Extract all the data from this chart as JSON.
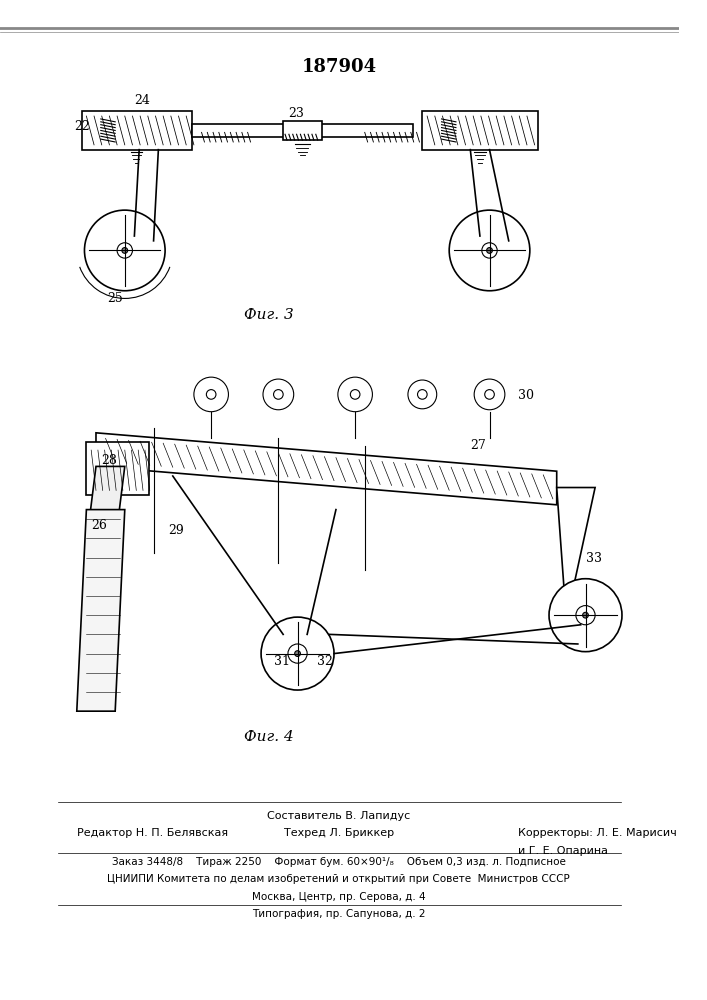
{
  "title_number": "187904",
  "fig3_caption": "Фиг. 3",
  "fig4_caption": "Фиг. 4",
  "footer_line1": "Составитель В. Лапидус",
  "footer_line2_left": "Редактор Н. П. Белявская",
  "footer_line2_mid": "Техред Л. Бриккер",
  "footer_line2_right": "Корректоры: Л. Е. Марисич",
  "footer_line2_right2": "и Г. Е. Опарина",
  "footer_line3": "Заказ 3448/8    Тираж 2250    Формат бум. 60×90¹/₈    Объем 0,3 изд. л. Подписное",
  "footer_line4": "ЦНИИПИ Комитета по делам изобретений и открытий при Совете  Министров СССР",
  "footer_line5": "Москва, Центр, пр. Серова, д. 4",
  "footer_line6": "Типография, пр. Сапунова, д. 2",
  "bg_color": "#ffffff",
  "line_color": "#000000",
  "text_color": "#000000",
  "fig_width": 7.07,
  "fig_height": 10.0,
  "dpi": 100
}
